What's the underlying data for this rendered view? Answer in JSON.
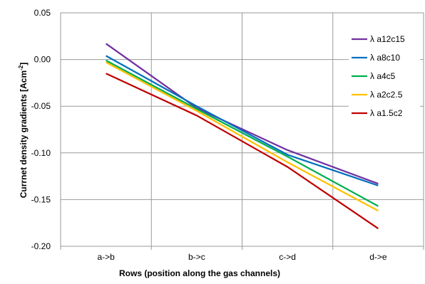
{
  "chart_data": {
    "type": "line",
    "categories": [
      "a->b",
      "b->c",
      "c->d",
      "d->e"
    ],
    "ylim": [
      -0.2,
      0.05
    ],
    "y_ticks": [
      "0.05",
      "0.00",
      "-0.05",
      "-0.10",
      "-0.15",
      "-0.20"
    ],
    "y_tick_values": [
      0.05,
      0.0,
      -0.05,
      -0.1,
      -0.15,
      -0.2
    ],
    "xlabel": "Rows (position along the gas channels)",
    "ylabel_main": "Currnet density gradients  [Acm",
    "ylabel_sup": "-2",
    "ylabel_end": "]",
    "grid": true,
    "legend_position": "right",
    "series": [
      {
        "name": "λ a12c15",
        "color": "#7030A0",
        "values": [
          0.017,
          -0.052,
          -0.097,
          -0.133
        ]
      },
      {
        "name": "λ a8c10",
        "color": "#0070C0",
        "values": [
          0.004,
          -0.05,
          -0.102,
          -0.135
        ]
      },
      {
        "name": "λ a4c5",
        "color": "#00B050",
        "values": [
          -0.001,
          -0.053,
          -0.104,
          -0.157
        ]
      },
      {
        "name": "λ a2c2.5",
        "color": "#FFC000",
        "values": [
          -0.003,
          -0.055,
          -0.11,
          -0.162
        ]
      },
      {
        "name": "λ a1.5c2",
        "color": "#C00000",
        "values": [
          -0.015,
          -0.06,
          -0.115,
          -0.181
        ]
      }
    ]
  }
}
